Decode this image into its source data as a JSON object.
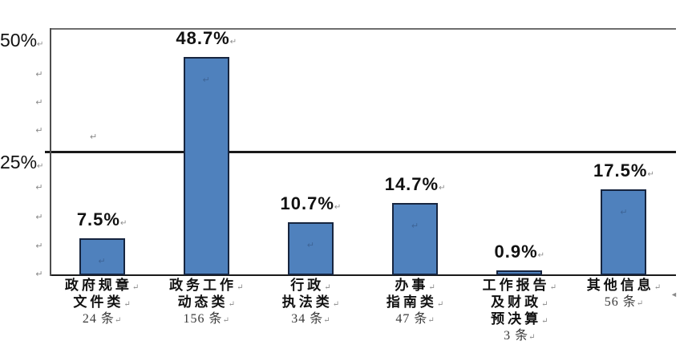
{
  "chart_data": {
    "type": "bar",
    "title": "",
    "xlabel": "",
    "ylabel": "",
    "categories": [
      "政府规章文件类",
      "政务工作动态类",
      "行政执法类",
      "办事指南类",
      "工作报告及财政预决算",
      "其他信息"
    ],
    "values": [
      7.5,
      48.7,
      10.7,
      14.7,
      0.9,
      17.5
    ],
    "counts": [
      24,
      156,
      34,
      47,
      3,
      56
    ],
    "count_unit": "条",
    "value_labels": [
      "7.5%",
      "48.7%",
      "10.7%",
      "14.7%",
      "0.9%",
      "17.5%"
    ],
    "ylim": [
      0,
      50
    ],
    "yticks": [
      25,
      50
    ],
    "ytick_labels": [
      "25%",
      "50%"
    ],
    "gridlines": "horizontal at 25% (black) and 50% (gray)",
    "legend": "none",
    "bar_color": "#4F81BD"
  },
  "axis": {
    "tick_50": "50%",
    "tick_25": "25%"
  },
  "bars": [
    {
      "value": 7.5,
      "value_label": "7.5%",
      "label_lines": [
        "政府规章",
        "文件类"
      ],
      "count_label": "24 条"
    },
    {
      "value": 48.7,
      "value_label": "48.7%",
      "label_lines": [
        "政务工作",
        "动态类"
      ],
      "count_label": "156 条"
    },
    {
      "value": 10.7,
      "value_label": "10.7%",
      "label_lines": [
        "行政",
        "执法类"
      ],
      "count_label": "34 条"
    },
    {
      "value": 14.7,
      "value_label": "14.7%",
      "label_lines": [
        "办事",
        "指南类"
      ],
      "count_label": "47 条"
    },
    {
      "value": 0.9,
      "value_label": "0.9%",
      "label_lines": [
        "工作报告",
        "及财政",
        "预决算"
      ],
      "count_label": "3 条"
    },
    {
      "value": 17.5,
      "value_label": "17.5%",
      "label_lines": [
        "其他信息"
      ],
      "count_label": "56 条"
    }
  ],
  "icons": {
    "return_mark": "↵",
    "anchor_mark": "↵",
    "cursor_mark": "◄"
  },
  "colors": {
    "bar_fill": "#4F81BD",
    "bar_border": "#17253F",
    "grid_25": "#1A1A1A",
    "grid_50": "#6E6E6E",
    "axis": "#4D4D4D",
    "text": "#111111",
    "mark": "#8A8A8A",
    "count": "#3A3A3A"
  }
}
